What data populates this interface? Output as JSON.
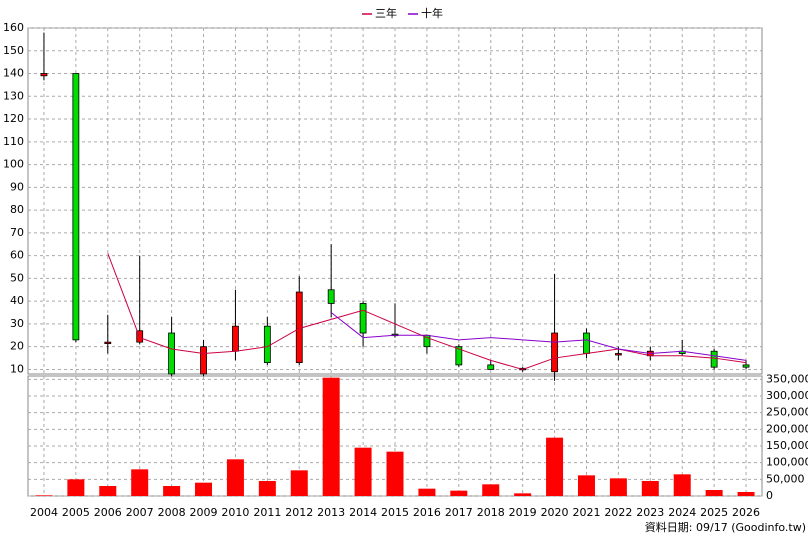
{
  "chart_data": {
    "type": "candlestick",
    "categories": [
      "2004",
      "2005",
      "2006",
      "2007",
      "2008",
      "2009",
      "2010",
      "2011",
      "2012",
      "2013",
      "2014",
      "2015",
      "2016",
      "2017",
      "2018",
      "2019",
      "2020",
      "2021",
      "2022",
      "2023",
      "2024",
      "2025",
      "2026"
    ],
    "open": [
      139,
      140,
      22,
      22,
      26,
      8,
      18,
      29,
      13,
      45,
      39,
      25.5,
      25,
      20,
      12,
      10,
      9,
      26,
      17,
      16,
      18,
      18,
      12
    ],
    "high": [
      158,
      140,
      34,
      60,
      33,
      23,
      45,
      33,
      51,
      65,
      40,
      39,
      25,
      21,
      14,
      11,
      52,
      28,
      20,
      20,
      23,
      19,
      14
    ],
    "low": [
      137,
      22,
      17,
      21,
      7,
      7,
      14,
      12,
      12,
      33,
      20,
      24,
      17,
      11,
      10,
      9,
      5,
      15,
      14,
      14,
      16,
      10,
      10
    ],
    "close": [
      140,
      23,
      22,
      27,
      8,
      20,
      29,
      13,
      44,
      39,
      26,
      25,
      20,
      12,
      10,
      10.5,
      26,
      17,
      17,
      18,
      17,
      11,
      11
    ],
    "up_color": "#ff0000",
    "down_color": "#00dd00",
    "ylim": [
      8,
      160
    ],
    "yticks": [
      10,
      20,
      30,
      40,
      50,
      60,
      70,
      80,
      90,
      100,
      110,
      120,
      130,
      140,
      150,
      160
    ],
    "grid": true,
    "series": [
      {
        "name": "三年",
        "color": "#cc0044",
        "values": [
          null,
          null,
          61,
          24,
          19,
          17,
          18,
          20,
          28,
          32,
          36,
          30,
          24,
          19,
          14,
          10,
          15,
          17,
          19,
          16,
          16,
          15,
          13
        ]
      },
      {
        "name": "十年",
        "color": "#8800cc",
        "values": [
          null,
          null,
          null,
          null,
          null,
          null,
          null,
          null,
          null,
          35,
          24,
          25,
          25,
          23,
          24,
          23,
          22,
          23,
          19,
          17,
          18,
          16,
          14
        ]
      }
    ],
    "volume": {
      "color": "#ff0000",
      "values": [
        2000,
        50000,
        30000,
        80000,
        30000,
        40000,
        110000,
        45000,
        77000,
        355000,
        145000,
        133000,
        22000,
        16000,
        35000,
        8000,
        175000,
        62000,
        53000,
        45000,
        65000,
        18000,
        12000
      ],
      "ylim": [
        0,
        360000
      ],
      "yticks": [
        {
          "value": 0,
          "label": "0"
        },
        {
          "value": 50000,
          "label": "50,000"
        },
        {
          "value": 100000,
          "label": "100,000"
        },
        {
          "value": 150000,
          "label": "150,000"
        },
        {
          "value": 200000,
          "label": "200,000"
        },
        {
          "value": 250000,
          "label": "250,000"
        },
        {
          "value": 300000,
          "label": "300,000"
        },
        {
          "value": 350000,
          "label": "350,000"
        }
      ]
    },
    "note": "資料日期: 09/17  (Goodinfo.tw)"
  }
}
